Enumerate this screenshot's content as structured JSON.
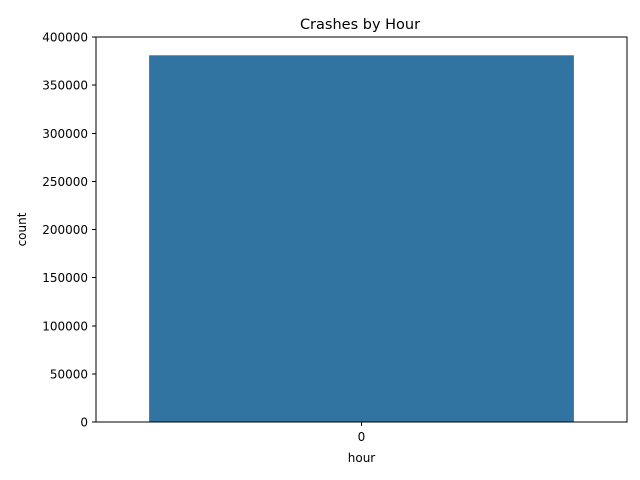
{
  "chart_data": {
    "type": "bar",
    "title": "Crashes by Hour",
    "xlabel": "hour",
    "ylabel": "count",
    "categories": [
      "0"
    ],
    "values": [
      381000
    ],
    "ylim": [
      0,
      400000
    ],
    "yticks": [
      0,
      50000,
      100000,
      150000,
      200000,
      250000,
      300000,
      350000,
      400000
    ],
    "bar_color": "#3274a1",
    "grid": false,
    "legend": "none"
  }
}
